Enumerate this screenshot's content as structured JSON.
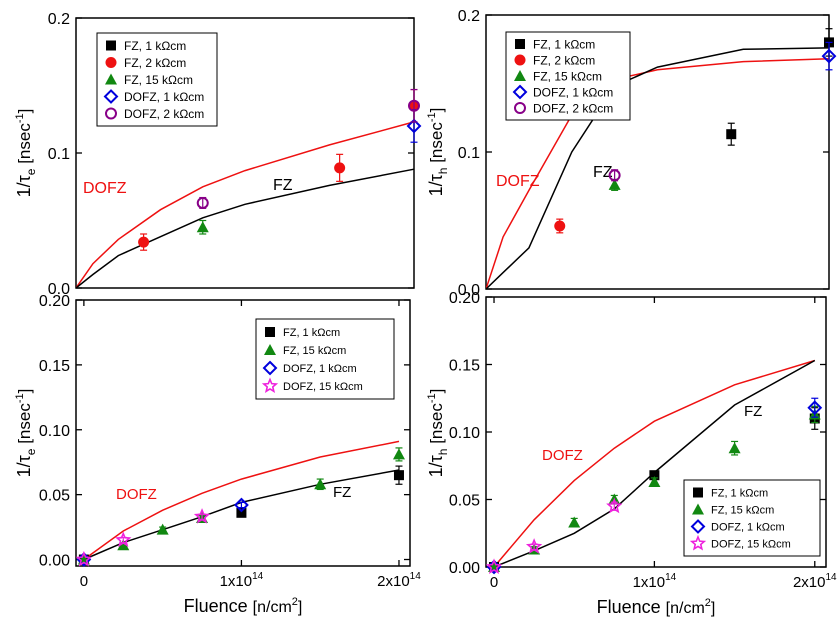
{
  "chart_data": [
    {
      "type": "scatter",
      "panel": "top-left",
      "xlim": [
        0,
        200000000000000
      ],
      "ylim": [
        0,
        0.2
      ],
      "yticks": [
        {
          "v": 0,
          "label": "0.0"
        },
        {
          "v": 0.1,
          "label": "0.1"
        },
        {
          "v": 0.2,
          "label": "0.2"
        }
      ],
      "ylabel_main": "1/τ",
      "ylabel_sub": "e",
      "ylabel_tail": " [nsec",
      "ylabel_sup": "-1",
      "ylabel_close": "]",
      "legend_position": "top-left",
      "legend": [
        {
          "name": "FZ, 1 kΩcm",
          "marker": "square",
          "color": "#000000"
        },
        {
          "name": "FZ, 2 kΩcm",
          "marker": "circle",
          "color": "#ee1111"
        },
        {
          "name": "FZ, 15 kΩcm",
          "marker": "triangle",
          "color": "#118811"
        },
        {
          "name": "DOFZ, 1 kΩcm",
          "marker": "diamond-open",
          "color": "#0000dd"
        },
        {
          "name": "DOFZ, 2 kΩcm",
          "marker": "circle-open",
          "color": "#880088"
        }
      ],
      "lines": [
        {
          "label": "DOFZ",
          "color": "#ee1111",
          "x": [
            0,
            10000000000000,
            25000000000000,
            50000000000000,
            75000000000000,
            100000000000000,
            150000000000000,
            200000000000000
          ],
          "y": [
            0,
            0.018,
            0.036,
            0.058,
            0.075,
            0.087,
            0.106,
            0.123
          ]
        },
        {
          "label": "FZ",
          "color": "#000000",
          "x": [
            0,
            10000000000000,
            25000000000000,
            50000000000000,
            75000000000000,
            100000000000000,
            150000000000000,
            200000000000000
          ],
          "y": [
            0,
            0.01,
            0.024,
            0.038,
            0.052,
            0.062,
            0.076,
            0.088
          ]
        }
      ],
      "series": [
        {
          "name": "FZ, 1 kΩcm",
          "marker": "square",
          "color": "#000000",
          "points": []
        },
        {
          "name": "FZ, 2 kΩcm",
          "marker": "circle",
          "color": "#ee1111",
          "points": [
            {
              "x": 40000000000000,
              "y": 0.034,
              "err": 0.006
            },
            {
              "x": 156000000000000,
              "y": 0.089,
              "err": 0.01
            },
            {
              "x": 200000000000000,
              "y": 0.135,
              "err": 0.012
            }
          ]
        },
        {
          "name": "FZ, 15 kΩcm",
          "marker": "triangle",
          "color": "#118811",
          "points": [
            {
              "x": 75000000000000,
              "y": 0.045,
              "err": 0.005
            }
          ]
        },
        {
          "name": "DOFZ, 1 kΩcm",
          "marker": "diamond-open",
          "color": "#0000dd",
          "points": [
            {
              "x": 200000000000000,
              "y": 0.12,
              "err": 0.012
            }
          ]
        },
        {
          "name": "DOFZ, 2 kΩcm",
          "marker": "circle-open",
          "color": "#880088",
          "points": [
            {
              "x": 75000000000000,
              "y": 0.063,
              "err": 0.004
            },
            {
              "x": 200000000000000,
              "y": 0.135,
              "err": 0.012
            }
          ]
        }
      ]
    },
    {
      "type": "scatter",
      "panel": "top-right",
      "xlim": [
        0,
        200000000000000
      ],
      "ylim": [
        0,
        0.2
      ],
      "yticks": [
        {
          "v": 0,
          "label": "0.0"
        },
        {
          "v": 0.1,
          "label": "0.1"
        },
        {
          "v": 0.2,
          "label": "0.2"
        }
      ],
      "ylabel_main": "1/τ",
      "ylabel_sub": "h",
      "ylabel_tail": " [nsec",
      "ylabel_sup": "-1",
      "ylabel_close": "]",
      "legend_position": "top-left",
      "legend": [
        {
          "name": "FZ, 1 kΩcm",
          "marker": "square",
          "color": "#000000"
        },
        {
          "name": "FZ, 2 kΩcm",
          "marker": "circle",
          "color": "#ee1111"
        },
        {
          "name": "FZ, 15 kΩcm",
          "marker": "triangle",
          "color": "#118811"
        },
        {
          "name": "DOFZ, 1 kΩcm",
          "marker": "diamond-open",
          "color": "#0000dd"
        },
        {
          "name": "DOFZ, 2 kΩcm",
          "marker": "circle-open",
          "color": "#880088"
        }
      ],
      "lines": [
        {
          "label": "DOFZ",
          "color": "#ee1111",
          "x": [
            0,
            10000000000000,
            25000000000000,
            50000000000000,
            75000000000000,
            100000000000000,
            150000000000000,
            200000000000000
          ],
          "y": [
            0,
            0.038,
            0.072,
            0.127,
            0.153,
            0.16,
            0.166,
            0.168
          ]
        },
        {
          "label": "FZ",
          "color": "#000000",
          "x": [
            0,
            10000000000000,
            25000000000000,
            50000000000000,
            75000000000000,
            100000000000000,
            150000000000000,
            200000000000000
          ],
          "y": [
            0,
            0.012,
            0.03,
            0.1,
            0.148,
            0.162,
            0.175,
            0.176
          ]
        }
      ],
      "series": [
        {
          "name": "FZ, 1 kΩcm",
          "marker": "square",
          "color": "#000000",
          "points": [
            {
              "x": 143000000000000,
              "y": 0.113,
              "err": 0.008
            },
            {
              "x": 200000000000000,
              "y": 0.18,
              "err": 0.01
            }
          ]
        },
        {
          "name": "FZ, 2 kΩcm",
          "marker": "circle",
          "color": "#ee1111",
          "points": [
            {
              "x": 43000000000000,
              "y": 0.046,
              "err": 0.005
            }
          ]
        },
        {
          "name": "FZ, 15 kΩcm",
          "marker": "triangle",
          "color": "#118811",
          "points": [
            {
              "x": 75000000000000,
              "y": 0.076,
              "err": 0.004
            }
          ]
        },
        {
          "name": "DOFZ, 1 kΩcm",
          "marker": "diamond-open",
          "color": "#0000dd",
          "points": [
            {
              "x": 200000000000000,
              "y": 0.17,
              "err": 0.01
            }
          ]
        },
        {
          "name": "DOFZ, 2 kΩcm",
          "marker": "circle-open",
          "color": "#880088",
          "points": [
            {
              "x": 75000000000000,
              "y": 0.083,
              "err": 0.004
            }
          ]
        }
      ]
    },
    {
      "type": "scatter",
      "panel": "bottom-left",
      "xlim": [
        -5000000000000,
        207000000000000
      ],
      "ylim": [
        -0.005,
        0.2
      ],
      "xticks": [
        {
          "v": 0,
          "label": "0"
        },
        {
          "v": 100000000000000,
          "label": "1x10",
          "sup": "14"
        },
        {
          "v": 200000000000000,
          "label": "2x10",
          "sup": "14"
        }
      ],
      "yticks": [
        {
          "v": 0,
          "label": "0.00"
        },
        {
          "v": 0.05,
          "label": "0.05"
        },
        {
          "v": 0.1,
          "label": "0.10"
        },
        {
          "v": 0.15,
          "label": "0.15"
        },
        {
          "v": 0.2,
          "label": "0.20"
        }
      ],
      "xlabel": "Fluence ",
      "xlabel_bracket": "[n/cm",
      "xlabel_sup": "2",
      "xlabel_close": "]",
      "ylabel_main": "1/τ",
      "ylabel_sub": "e",
      "ylabel_tail": " [nsec",
      "ylabel_sup": "-1",
      "ylabel_close": "]",
      "legend_position": "top-right",
      "legend": [
        {
          "name": "FZ, 1 kΩcm",
          "marker": "square",
          "color": "#000000"
        },
        {
          "name": "FZ, 15 kΩcm",
          "marker": "triangle",
          "color": "#118811"
        },
        {
          "name": "DOFZ, 1 kΩcm",
          "marker": "diamond-open",
          "color": "#0000dd"
        },
        {
          "name": "DOFZ, 15 kΩcm",
          "marker": "star-open",
          "color": "#ee22dd"
        }
      ],
      "lines": [
        {
          "label": "DOFZ",
          "color": "#ee1111",
          "x": [
            0,
            25000000000000,
            50000000000000,
            75000000000000,
            100000000000000,
            150000000000000,
            200000000000000
          ],
          "y": [
            0,
            0.022,
            0.038,
            0.051,
            0.062,
            0.079,
            0.091
          ]
        },
        {
          "label": "FZ",
          "color": "#000000",
          "x": [
            0,
            25000000000000,
            50000000000000,
            75000000000000,
            100000000000000,
            150000000000000,
            200000000000000
          ],
          "y": [
            0,
            0.013,
            0.023,
            0.033,
            0.044,
            0.058,
            0.069
          ]
        }
      ],
      "series": [
        {
          "name": "FZ, 1 kΩcm",
          "marker": "square",
          "color": "#000000",
          "points": [
            {
              "x": 0,
              "y": 0,
              "err": 0
            },
            {
              "x": 100000000000000,
              "y": 0.036,
              "err": 0.003
            },
            {
              "x": 200000000000000,
              "y": 0.065,
              "err": 0.007
            }
          ]
        },
        {
          "name": "FZ, 15 kΩcm",
          "marker": "triangle",
          "color": "#118811",
          "points": [
            {
              "x": 0,
              "y": 0,
              "err": 0
            },
            {
              "x": 25000000000000,
              "y": 0.011,
              "err": 0.002
            },
            {
              "x": 50000000000000,
              "y": 0.023,
              "err": 0.002
            },
            {
              "x": 75000000000000,
              "y": 0.032,
              "err": 0.002
            },
            {
              "x": 150000000000000,
              "y": 0.058,
              "err": 0.004
            },
            {
              "x": 200000000000000,
              "y": 0.081,
              "err": 0.005
            }
          ]
        },
        {
          "name": "DOFZ, 1 kΩcm",
          "marker": "diamond-open",
          "color": "#0000dd",
          "points": [
            {
              "x": 0,
              "y": 0,
              "err": 0
            },
            {
              "x": 100000000000000,
              "y": 0.042,
              "err": 0.002
            }
          ]
        },
        {
          "name": "DOFZ, 15 kΩcm",
          "marker": "star-open",
          "color": "#ee22dd",
          "points": [
            {
              "x": 0,
              "y": 0,
              "err": 0
            },
            {
              "x": 25000000000000,
              "y": 0.015,
              "err": 0.002
            },
            {
              "x": 75000000000000,
              "y": 0.033,
              "err": 0.002
            }
          ]
        }
      ]
    },
    {
      "type": "scatter",
      "panel": "bottom-right",
      "xlim": [
        -5000000000000,
        207000000000000
      ],
      "ylim": [
        0,
        0.2
      ],
      "xticks": [
        {
          "v": 0,
          "label": "0"
        },
        {
          "v": 100000000000000,
          "label": "1x10",
          "sup": "14"
        },
        {
          "v": 200000000000000,
          "label": "2x10",
          "sup": "14"
        }
      ],
      "yticks": [
        {
          "v": 0,
          "label": "0.00"
        },
        {
          "v": 0.05,
          "label": "0.05"
        },
        {
          "v": 0.1,
          "label": "0.10"
        },
        {
          "v": 0.15,
          "label": "0.15"
        },
        {
          "v": 0.2,
          "label": "0.20"
        }
      ],
      "xlabel": "Fluence ",
      "xlabel_bracket": "[n/cm",
      "xlabel_sup": "2",
      "xlabel_close": "]",
      "ylabel_main": "1/τ",
      "ylabel_sub": "h",
      "ylabel_tail": " [nsec",
      "ylabel_sup": "-1",
      "ylabel_close": "]",
      "legend_position": "bottom-right",
      "legend": [
        {
          "name": "FZ, 1 kΩcm",
          "marker": "square",
          "color": "#000000"
        },
        {
          "name": "FZ, 15 kΩcm",
          "marker": "triangle",
          "color": "#118811"
        },
        {
          "name": "DOFZ, 1 kΩcm",
          "marker": "diamond-open",
          "color": "#0000dd"
        },
        {
          "name": "DOFZ, 15 kΩcm",
          "marker": "star-open",
          "color": "#ee22dd"
        }
      ],
      "lines": [
        {
          "label": "DOFZ",
          "color": "#ee1111",
          "x": [
            0,
            25000000000000,
            50000000000000,
            75000000000000,
            100000000000000,
            150000000000000,
            200000000000000
          ],
          "y": [
            0,
            0.035,
            0.064,
            0.088,
            0.108,
            0.135,
            0.153
          ]
        },
        {
          "label": "FZ",
          "color": "#000000",
          "x": [
            0,
            25000000000000,
            50000000000000,
            75000000000000,
            100000000000000,
            150000000000000,
            200000000000000
          ],
          "y": [
            0,
            0.012,
            0.025,
            0.043,
            0.07,
            0.12,
            0.153
          ]
        }
      ],
      "series": [
        {
          "name": "FZ, 1 kΩcm",
          "marker": "square",
          "color": "#000000",
          "points": [
            {
              "x": 0,
              "y": 0,
              "err": 0
            },
            {
              "x": 100000000000000,
              "y": 0.068,
              "err": 0.003
            },
            {
              "x": 200000000000000,
              "y": 0.11,
              "err": 0.008
            }
          ]
        },
        {
          "name": "FZ, 15 kΩcm",
          "marker": "triangle",
          "color": "#118811",
          "points": [
            {
              "x": 0,
              "y": 0,
              "err": 0
            },
            {
              "x": 25000000000000,
              "y": 0.013,
              "err": 0.002
            },
            {
              "x": 50000000000000,
              "y": 0.033,
              "err": 0.003
            },
            {
              "x": 75000000000000,
              "y": 0.05,
              "err": 0.003
            },
            {
              "x": 100000000000000,
              "y": 0.063,
              "err": 0.003
            },
            {
              "x": 150000000000000,
              "y": 0.088,
              "err": 0.005
            },
            {
              "x": 200000000000000,
              "y": 0.113,
              "err": 0.006
            }
          ]
        },
        {
          "name": "DOFZ, 1 kΩcm",
          "marker": "diamond-open",
          "color": "#0000dd",
          "points": [
            {
              "x": 0,
              "y": 0,
              "err": 0
            },
            {
              "x": 200000000000000,
              "y": 0.118,
              "err": 0.007
            }
          ]
        },
        {
          "name": "DOFZ, 15 kΩcm",
          "marker": "star-open",
          "color": "#ee22dd",
          "points": [
            {
              "x": 0,
              "y": 0,
              "err": 0
            },
            {
              "x": 25000000000000,
              "y": 0.015,
              "err": 0.002
            },
            {
              "x": 75000000000000,
              "y": 0.045,
              "err": 0.003
            }
          ]
        }
      ]
    }
  ]
}
